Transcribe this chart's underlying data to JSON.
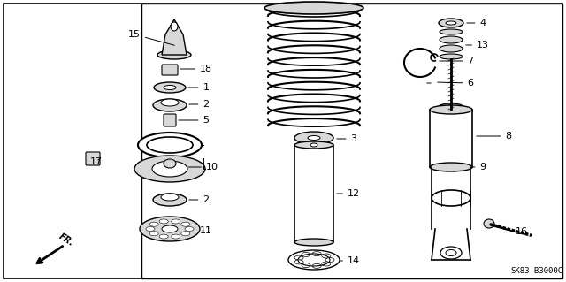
{
  "bg_color": "#ffffff",
  "line_color": "#000000",
  "part_fill": "#d8d8d8",
  "diagram_code": "SK83-B3000C",
  "fig_width": 6.4,
  "fig_height": 3.19,
  "dpi": 100
}
